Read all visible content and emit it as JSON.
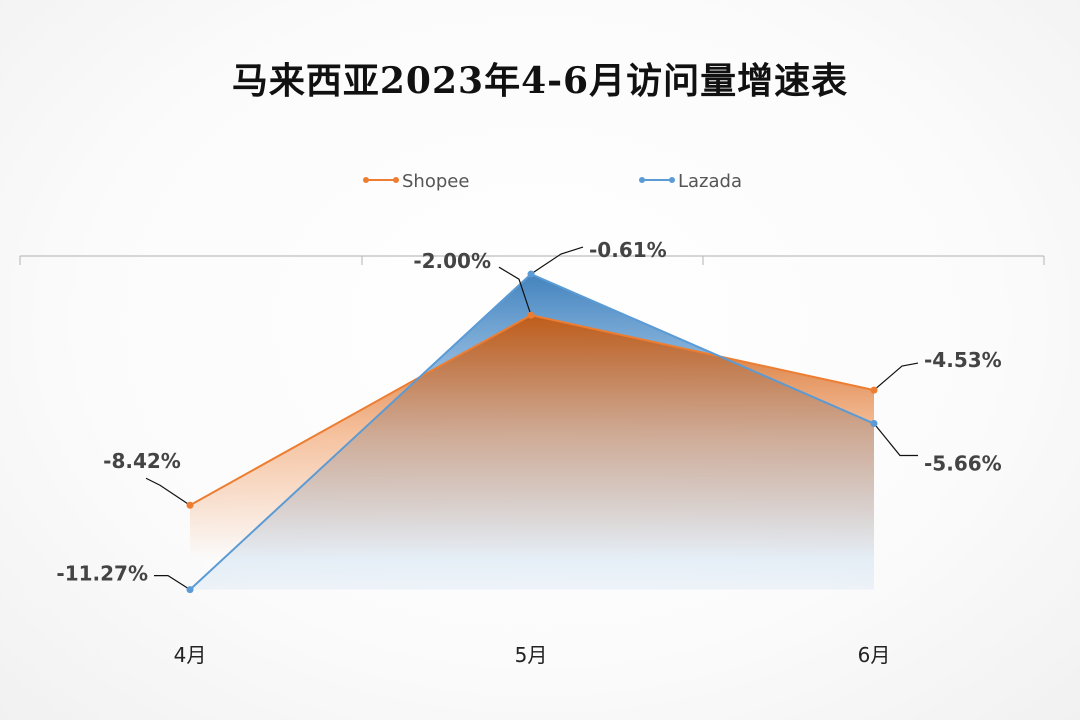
{
  "chart_data": {
    "type": "area",
    "title": "马来西亚2023年4-6月访问量增速表",
    "xlabel": "",
    "ylabel": "",
    "categories": [
      "4月",
      "5月",
      "6月"
    ],
    "series": [
      {
        "name": "Shopee",
        "values": [
          -8.42,
          -2.0,
          -4.53
        ],
        "labels": [
          "-8.42%",
          "-2.00%",
          "-4.53%"
        ],
        "color": "#ED7D31"
      },
      {
        "name": "Lazada",
        "values": [
          -11.27,
          -0.61,
          -5.66
        ],
        "labels": [
          "-11.27%",
          "-0.61%",
          "-5.66%"
        ],
        "color": "#5B9BD5"
      }
    ],
    "ylim": [
      -12.5,
      0
    ],
    "grid": false,
    "legend": "top-center",
    "axis_color": "#BFBFBF"
  }
}
